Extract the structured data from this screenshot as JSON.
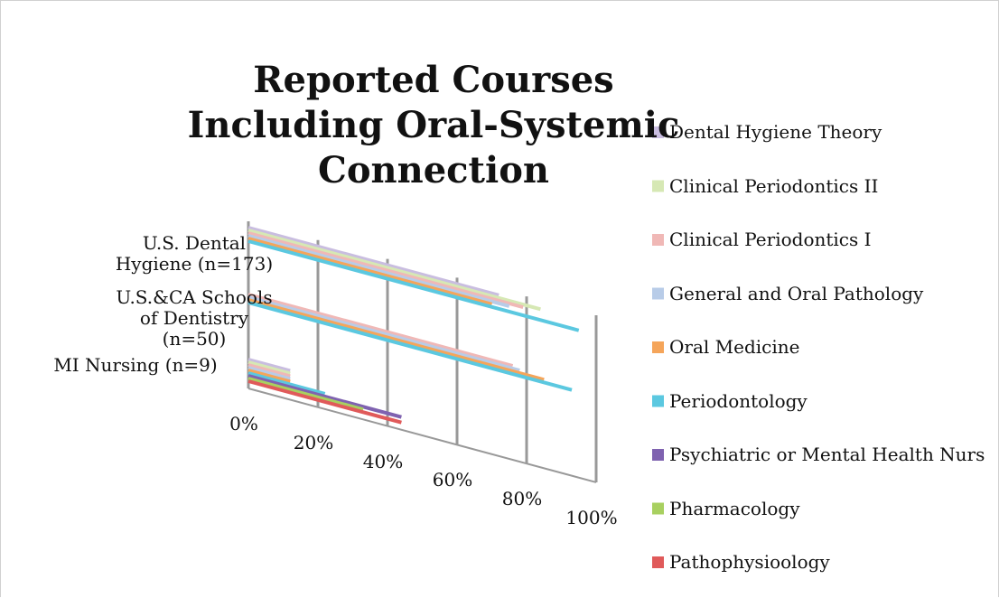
{
  "chart_data": {
    "type": "bar3d",
    "title": "Reported Courses Including Oral-Systemic Connection",
    "categories": [
      "U.S. Dental Hygiene (n=173)",
      "U.S.&CA Schools of Dentistry (n=50)",
      "MI Nursing (n=9)"
    ],
    "series": [
      {
        "name": "Dental Hygiene Theory",
        "color": "#c9bde0",
        "values": [
          72,
          0,
          12
        ]
      },
      {
        "name": "Clinical Periodontics II",
        "color": "#d6e8b4",
        "values": [
          84,
          0,
          12
        ]
      },
      {
        "name": "Clinical Periodontics I",
        "color": "#f0b8b6",
        "values": [
          79,
          76,
          12
        ]
      },
      {
        "name": "General and Oral Pathology",
        "color": "#b8cce8",
        "values": [
          75,
          78,
          12
        ]
      },
      {
        "name": "Oral Medicine",
        "color": "#f5a55a",
        "values": [
          70,
          85,
          12
        ]
      },
      {
        "name": "Periodontology",
        "color": "#5bc8e0",
        "values": [
          95,
          93,
          22
        ]
      },
      {
        "name": "Psychiatric or Mental Health Nurs",
        "color": "#7f62b0",
        "values": [
          0,
          0,
          44
        ]
      },
      {
        "name": "Pharmacology",
        "color": "#a8d060",
        "values": [
          0,
          0,
          33
        ]
      },
      {
        "name": "Pathophysioology",
        "color": "#e05a5a",
        "values": [
          0,
          0,
          44
        ]
      }
    ],
    "xlim": [
      0,
      100
    ],
    "xticks": [
      {
        "value": 0,
        "label": "0%"
      },
      {
        "value": 20,
        "label": "20%"
      },
      {
        "value": 40,
        "label": "40%"
      },
      {
        "value": 60,
        "label": "60%"
      },
      {
        "value": 80,
        "label": "80%"
      },
      {
        "value": 100,
        "label": "100%"
      }
    ],
    "grid": true,
    "legend": "right"
  }
}
